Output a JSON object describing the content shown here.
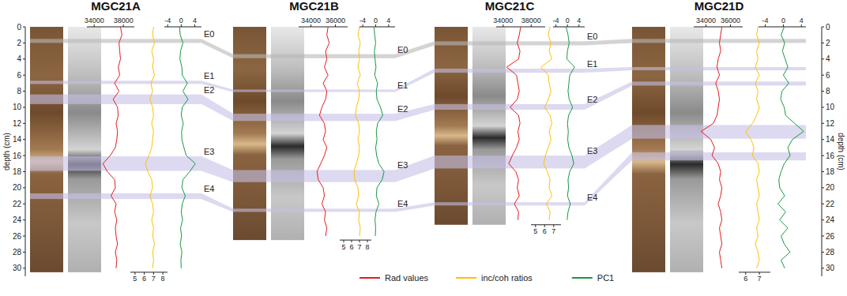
{
  "chart_data": {
    "type": "line",
    "y_label": "depth (cm)",
    "ylim": [
      0,
      31
    ],
    "yticks": [
      0,
      2,
      4,
      6,
      8,
      10,
      12,
      14,
      16,
      18,
      20,
      22,
      24,
      26,
      28,
      30
    ],
    "legend": "bottom",
    "series": [
      {
        "name": "Rad values",
        "color": "#e41a1c"
      },
      {
        "name": "inc/coh ratios",
        "color": "#ffc000"
      },
      {
        "name": "PC1",
        "color": "#1a9641"
      }
    ],
    "panels": [
      {
        "title": "MGC21A",
        "core_length": 30.5,
        "depth": [
          0,
          1,
          2,
          3,
          4,
          5,
          6,
          7,
          8,
          9,
          10,
          11,
          12,
          13,
          14,
          15,
          16,
          17,
          18,
          19,
          20,
          21,
          22,
          23,
          24,
          25,
          26,
          27,
          28,
          29,
          30
        ],
        "series": [
          {
            "xlim": [
              33000,
              39500
            ],
            "xticks": [
              34000,
              38000
            ],
            "values": [
              37600,
              37800,
              37400,
              37500,
              37600,
              37300,
              37500,
              36800,
              37400,
              36600,
              37200,
              37300,
              37000,
              37200,
              37100,
              36900,
              36200,
              35200,
              35800,
              36800,
              36900,
              36300,
              37000,
              36800,
              37100,
              36900,
              37000,
              37200,
              36900,
              37100,
              37000
            ]
          },
          {
            "xlim": [
              4.5,
              8.5
            ],
            "xticks": [
              5,
              6,
              7,
              8
            ],
            "values": [
              7.0,
              6.9,
              7.1,
              6.8,
              7.0,
              6.9,
              7.1,
              6.7,
              6.9,
              6.6,
              6.9,
              7.0,
              6.8,
              7.0,
              6.9,
              6.8,
              6.5,
              6.1,
              6.4,
              6.8,
              6.9,
              6.6,
              6.9,
              7.0,
              6.8,
              7.0,
              6.9,
              7.1,
              6.9,
              7.0,
              6.9
            ]
          },
          {
            "xlim": [
              -5,
              6
            ],
            "xticks": [
              -4,
              0,
              4
            ],
            "values": [
              -0.5,
              -0.3,
              0.5,
              -0.2,
              -0.4,
              0.2,
              0.3,
              1.8,
              0.5,
              2.0,
              0.3,
              0.0,
              0.6,
              0.1,
              0.2,
              0.8,
              1.5,
              4.2,
              2.5,
              0.5,
              0.2,
              1.2,
              0.3,
              0.0,
              0.4,
              -0.2,
              0.1,
              -0.3,
              0.2,
              -0.1,
              0.0
            ]
          }
        ],
        "events": [
          {
            "label": "E0",
            "top": 1.5,
            "bottom": 2.0,
            "color": "#b8b8b8"
          },
          {
            "label": "E1",
            "top": 6.7,
            "bottom": 7.1,
            "color": "#c4bfe6"
          },
          {
            "label": "E2",
            "top": 8.4,
            "bottom": 9.6,
            "color": "#c4bfe6"
          },
          {
            "label": "E3",
            "top": 16.1,
            "bottom": 17.9,
            "color": "#c4bfe6"
          },
          {
            "label": "E4",
            "top": 20.7,
            "bottom": 21.4,
            "color": "#c4bfe6"
          }
        ]
      },
      {
        "title": "MGC21B",
        "core_length": 26.5,
        "depth": [
          0,
          1,
          2,
          3,
          4,
          5,
          6,
          7,
          8,
          9,
          10,
          11,
          12,
          13,
          14,
          15,
          16,
          17,
          18,
          19,
          20,
          21,
          22,
          23,
          24,
          25,
          26
        ],
        "series": [
          {
            "xlim": [
              33000,
              37000
            ],
            "xticks": [
              34000,
              36000
            ],
            "values": [
              35400,
              35300,
              35500,
              35200,
              35300,
              35100,
              35400,
              35000,
              35300,
              35200,
              34900,
              34700,
              35100,
              35200,
              35000,
              35300,
              35100,
              34800,
              34500,
              34600,
              35000,
              35100,
              34900,
              35200,
              35100,
              35300,
              35200
            ]
          },
          {
            "xlim": [
              4.5,
              8.5
            ],
            "xticks": [
              5,
              6,
              7,
              8
            ],
            "values": [
              7.0,
              6.8,
              7.1,
              6.9,
              7.0,
              6.8,
              7.1,
              6.7,
              7.0,
              6.9,
              6.6,
              6.5,
              6.9,
              7.0,
              6.8,
              7.0,
              6.9,
              6.6,
              6.3,
              6.4,
              6.8,
              6.9,
              6.6,
              7.0,
              6.9,
              7.1,
              7.0
            ]
          },
          {
            "xlim": [
              -5,
              6
            ],
            "xticks": [
              -4,
              0,
              4
            ],
            "values": [
              -0.5,
              -0.3,
              0.0,
              -0.4,
              -0.2,
              0.1,
              -0.3,
              0.6,
              0.2,
              0.4,
              1.5,
              2.2,
              0.6,
              0.2,
              0.4,
              0.0,
              0.3,
              1.0,
              2.6,
              2.0,
              0.4,
              0.2,
              1.0,
              0.1,
              -0.2,
              0.0,
              -0.1
            ]
          }
        ],
        "events": [
          {
            "label": "E0",
            "top": 3.4,
            "bottom": 3.9,
            "color": "#b8b8b8"
          },
          {
            "label": "E1",
            "top": 7.8,
            "bottom": 8.1,
            "color": "#c4bfe6"
          },
          {
            "label": "E2",
            "top": 10.8,
            "bottom": 11.7,
            "color": "#c4bfe6"
          },
          {
            "label": "E3",
            "top": 17.8,
            "bottom": 19.3,
            "color": "#c4bfe6"
          },
          {
            "label": "E4",
            "top": 22.6,
            "bottom": 23.0,
            "color": "#c4bfe6"
          }
        ]
      },
      {
        "title": "MGC21C",
        "core_length": 24.6,
        "depth": [
          0,
          1,
          2,
          3,
          4,
          5,
          6,
          7,
          8,
          9,
          10,
          11,
          12,
          13,
          14,
          15,
          16,
          17,
          18,
          19,
          20,
          21,
          22,
          23,
          24
        ],
        "series": [
          {
            "xlim": [
              33000,
              40000
            ],
            "xticks": [
              34000,
              38000
            ],
            "values": [
              36500,
              36300,
              36000,
              36400,
              36200,
              34500,
              35900,
              36100,
              36300,
              36000,
              35000,
              36200,
              36400,
              36100,
              36300,
              35900,
              35300,
              34800,
              35800,
              36200,
              36000,
              36300,
              35600,
              36200,
              36100
            ]
          },
          {
            "xlim": [
              4.5,
              7.8
            ],
            "xticks": [
              5,
              6,
              7
            ],
            "values": [
              6.6,
              6.4,
              6.7,
              6.5,
              6.8,
              5.6,
              6.4,
              6.5,
              6.7,
              6.4,
              6.0,
              6.6,
              6.8,
              6.5,
              6.7,
              6.4,
              6.1,
              5.9,
              6.3,
              6.6,
              6.5,
              6.8,
              6.2,
              6.6,
              6.5
            ]
          },
          {
            "xlim": [
              -5,
              6
            ],
            "xticks": [
              -4,
              0,
              4
            ],
            "values": [
              -0.5,
              0.2,
              0.6,
              0.0,
              -0.2,
              2.5,
              0.8,
              0.5,
              0.2,
              0.6,
              1.8,
              0.4,
              0.0,
              0.3,
              0.1,
              0.5,
              1.6,
              2.2,
              0.8,
              0.2,
              0.4,
              0.0,
              1.0,
              0.2,
              -0.1
            ]
          }
        ],
        "events": [
          {
            "label": "E0",
            "top": 1.8,
            "bottom": 2.3,
            "color": "#b8b8b8"
          },
          {
            "label": "E1",
            "top": 5.2,
            "bottom": 5.7,
            "color": "#c4bfe6"
          },
          {
            "label": "E2",
            "top": 9.6,
            "bottom": 10.3,
            "color": "#c4bfe6"
          },
          {
            "label": "E3",
            "top": 16.0,
            "bottom": 17.6,
            "color": "#c4bfe6"
          },
          {
            "label": "E4",
            "top": 21.8,
            "bottom": 22.2,
            "color": "#c4bfe6"
          }
        ]
      },
      {
        "title": "MGC21D",
        "core_length": 30.5,
        "depth": [
          0,
          1,
          2,
          3,
          4,
          5,
          6,
          7,
          8,
          9,
          10,
          11,
          12,
          13,
          14,
          15,
          16,
          17,
          18,
          19,
          20,
          21,
          22,
          23,
          24,
          25,
          26,
          27,
          28,
          29,
          30
        ],
        "series": [
          {
            "xlim": [
              33000,
              37000
            ],
            "xticks": [
              34000,
              36000
            ],
            "values": [
              35300,
              35200,
              35100,
              35200,
              35000,
              34900,
              35100,
              34800,
              35000,
              35100,
              35000,
              34900,
              34600,
              33600,
              34400,
              34700,
              34500,
              35000,
              35200,
              35100,
              35300,
              35200,
              35000,
              35200,
              35300,
              35100,
              35200,
              35300,
              35100,
              35200,
              35300
            ]
          },
          {
            "xlim": [
              5.5,
              7.8
            ],
            "xticks": [
              6,
              7
            ],
            "values": [
              6.9,
              6.8,
              7.0,
              6.8,
              6.9,
              6.7,
              7.0,
              6.7,
              6.9,
              6.8,
              7.0,
              6.8,
              6.5,
              6.0,
              6.4,
              6.6,
              6.5,
              6.9,
              7.0,
              6.8,
              6.9,
              7.0,
              6.8,
              6.9,
              7.0,
              6.8,
              6.9,
              6.7,
              6.9,
              7.0,
              6.8
            ]
          },
          {
            "xlim": [
              -5.5,
              5
            ],
            "xticks": [
              -4,
              0,
              4
            ],
            "values": [
              0.2,
              -0.5,
              0.3,
              -0.2,
              0.4,
              1.0,
              0.0,
              1.2,
              -0.3,
              -0.6,
              0.2,
              0.5,
              2.5,
              4.5,
              2.0,
              1.0,
              1.5,
              0.2,
              -0.5,
              -1.0,
              -0.8,
              0.3,
              -1.2,
              0.5,
              -0.8,
              1.0,
              -0.5,
              0.2,
              1.5,
              -0.5,
              0.3
            ]
          }
        ],
        "events": [
          {
            "label": null,
            "top": 1.5,
            "bottom": 2.0,
            "color": "#b8b8b8"
          },
          {
            "label": null,
            "top": 5.0,
            "bottom": 5.4,
            "color": "#c4bfe6"
          },
          {
            "label": null,
            "top": 6.8,
            "bottom": 7.3,
            "color": "#c4bfe6"
          },
          {
            "label": null,
            "top": 12.2,
            "bottom": 13.9,
            "color": "#c4bfe6"
          },
          {
            "label": null,
            "top": 15.6,
            "bottom": 16.6,
            "color": "#c4bfe6"
          }
        ]
      }
    ]
  }
}
